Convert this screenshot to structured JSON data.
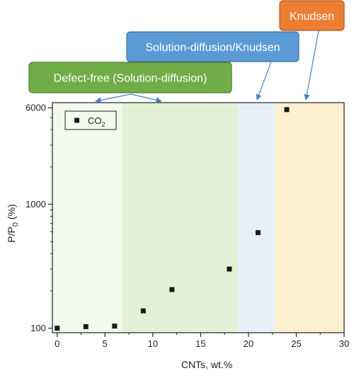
{
  "chart_data": {
    "type": "scatter",
    "title": "",
    "xlabel": "CNTs, wt.%",
    "ylabel_main": "P/P",
    "ylabel_sub": "0",
    "ylabel_tail": " (%)",
    "x_scale": "linear",
    "y_scale": "log",
    "xlim": [
      -0.5,
      30
    ],
    "ylim": [
      92,
      6600
    ],
    "x_ticks": [
      0,
      5,
      10,
      15,
      20,
      25,
      30
    ],
    "y_ticks": [
      100,
      1000,
      6000
    ],
    "grid": false,
    "legend_position": "top-left",
    "series": [
      {
        "name_main": "CO",
        "name_sub": "2",
        "marker": "square",
        "color": "#1a1a1a",
        "points": [
          {
            "x": 0,
            "y": 100
          },
          {
            "x": 3,
            "y": 103
          },
          {
            "x": 6,
            "y": 104
          },
          {
            "x": 9,
            "y": 138
          },
          {
            "x": 12,
            "y": 205
          },
          {
            "x": 18,
            "y": 300
          },
          {
            "x": 21,
            "y": 590
          },
          {
            "x": 24,
            "y": 5800
          }
        ]
      }
    ],
    "regions": [
      {
        "x_start": -0.5,
        "x_end": 6.8,
        "color": "#f1faeb"
      },
      {
        "x_start": 6.8,
        "x_end": 18.9,
        "color": "#e3f2d6"
      },
      {
        "x_start": 18.9,
        "x_end": 22.8,
        "color": "#e7f0fa"
      },
      {
        "x_start": 22.8,
        "x_end": 30,
        "color": "#fdf0cf"
      }
    ],
    "callouts": [
      {
        "text": "Defect-free (Solution-diffusion)",
        "fill": "#70ad47",
        "stroke": "#507e32",
        "text_color": "#ffffff"
      },
      {
        "text": "Solution-diffusion/Knudsen",
        "fill": "#5b9bd5",
        "stroke": "#41719c",
        "text_color": "#ffffff"
      },
      {
        "text": "Knudsen",
        "fill": "#ed7d31",
        "stroke": "#ae5a21",
        "text_color": "#ffffff"
      }
    ],
    "arrow_color": "#4a7fc1"
  }
}
